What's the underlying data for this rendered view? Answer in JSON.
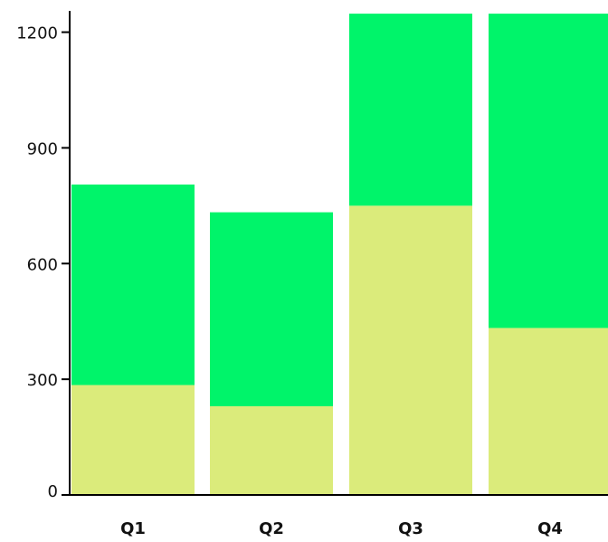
{
  "chart_data": {
    "type": "bar",
    "stacked": true,
    "categories": [
      "Q1",
      "Q2",
      "Q3",
      "Q4"
    ],
    "series": [
      {
        "values": [
          285,
          230,
          750,
          433
        ]
      },
      {
        "values": [
          520,
          503,
          498,
          830
        ]
      }
    ],
    "ylim": [
      0,
      1200
    ],
    "yticks": [
      0,
      300,
      600,
      900,
      1200
    ],
    "ytick_labels": [
      "0",
      "300",
      "600",
      "900",
      "1200"
    ],
    "colors": [
      "#dbeb7b",
      "#00f46a"
    ],
    "grid": false,
    "legend": "none",
    "title": "",
    "xlabel": "",
    "ylabel": ""
  }
}
